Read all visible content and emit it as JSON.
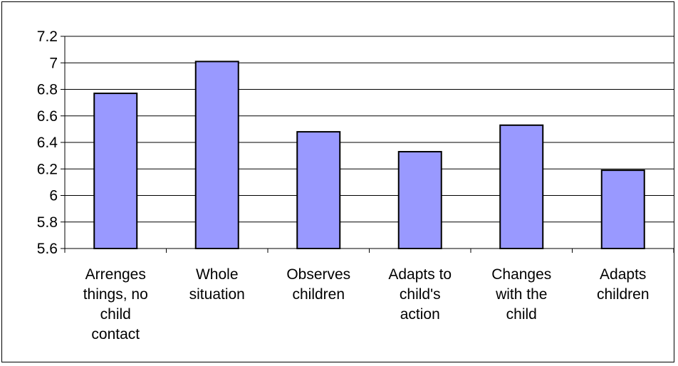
{
  "chart_data": {
    "type": "bar",
    "title": "",
    "xlabel": "",
    "ylabel": "",
    "categories": [
      [
        "Arrenges",
        "things, no",
        "child",
        "contact"
      ],
      [
        "Whole",
        "situation"
      ],
      [
        "Observes",
        "children"
      ],
      [
        "Adapts to",
        "child's",
        "action"
      ],
      [
        "Changes",
        "with the",
        "child"
      ],
      [
        "Adapts",
        "children"
      ]
    ],
    "values": [
      6.77,
      7.01,
      6.48,
      6.33,
      6.53,
      6.19
    ],
    "ylim": [
      5.6,
      7.2
    ],
    "yticks": [
      "5.6",
      "5.8",
      "6",
      "6.2",
      "6.4",
      "6.6",
      "6.8",
      "7",
      "7.2"
    ],
    "grid": true,
    "legend": "none",
    "colors": {
      "bar": "#9999ff",
      "bar_stroke": "#000000",
      "grid": "#000000",
      "axis": "#000000"
    }
  }
}
